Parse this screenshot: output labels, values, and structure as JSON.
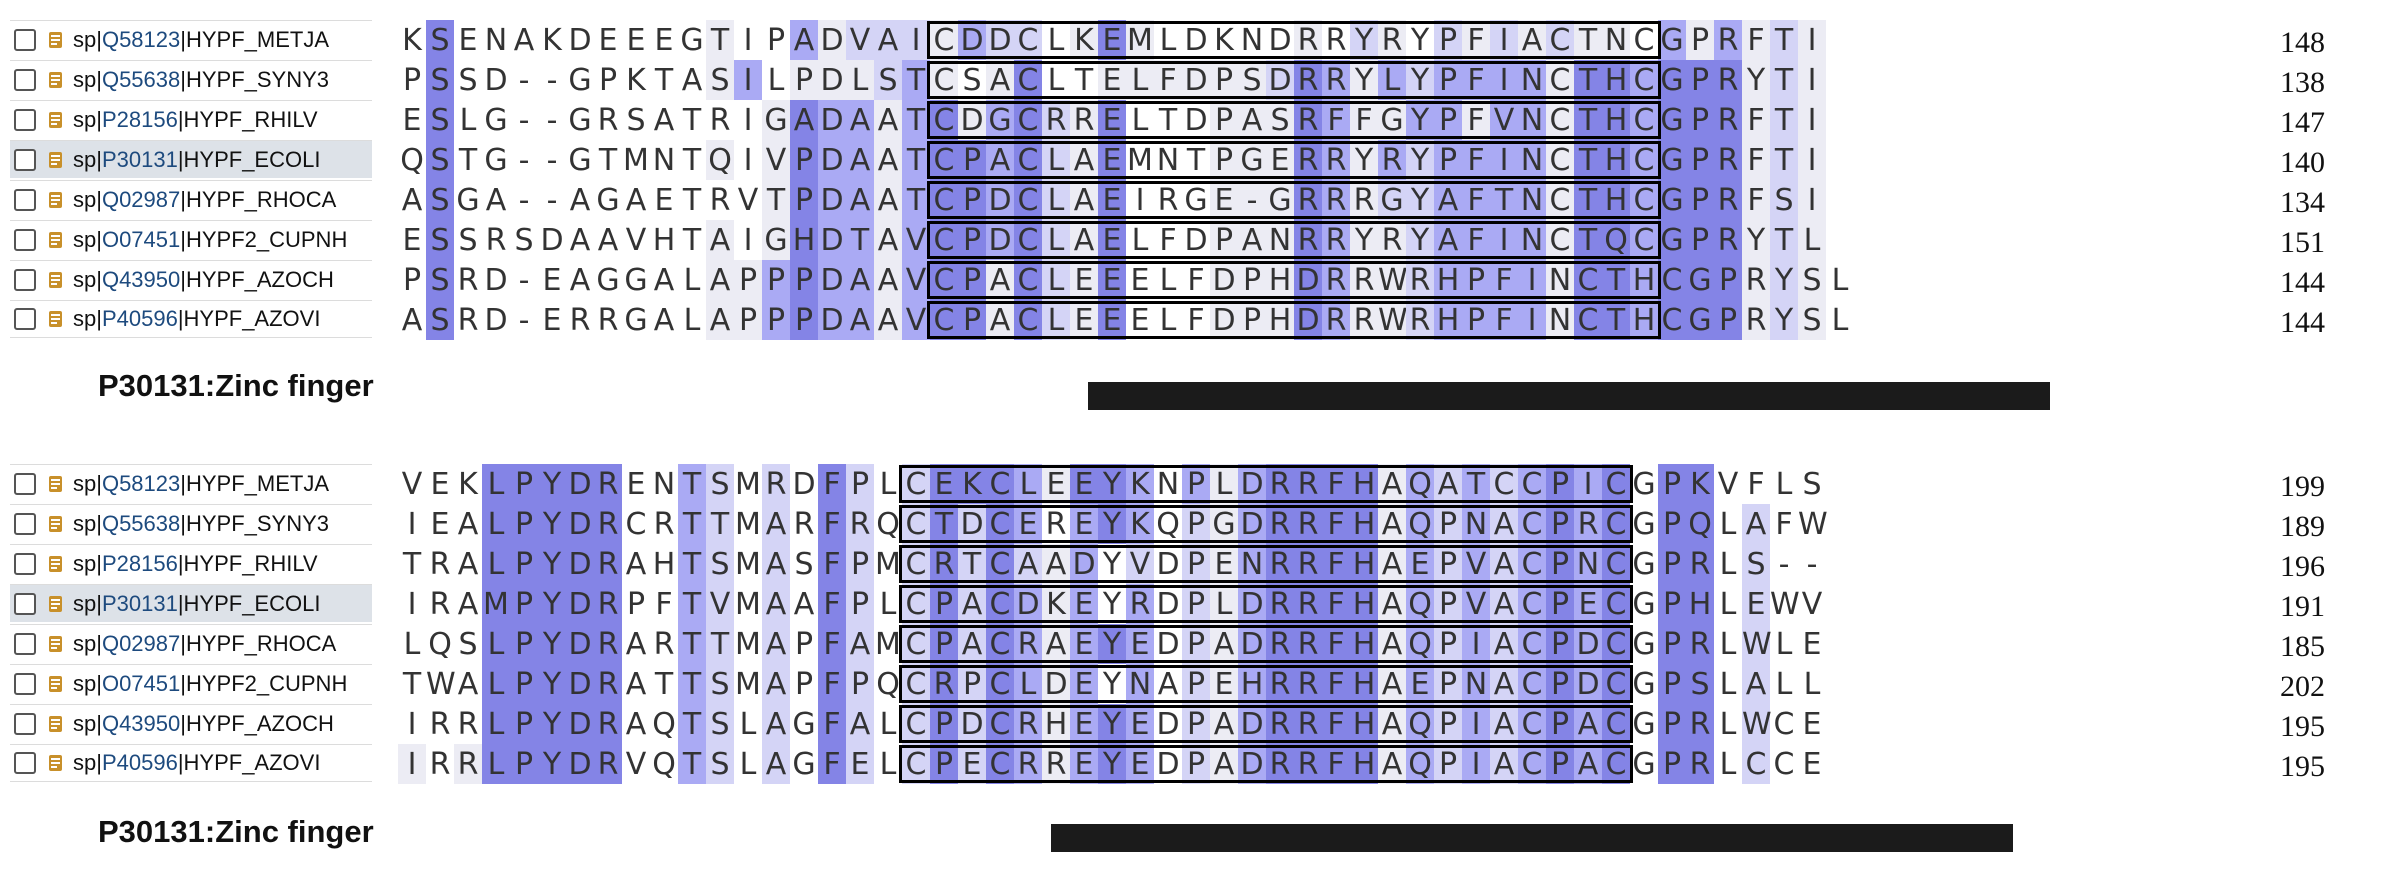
{
  "colors": {
    "accession_link": "#1d4a7e",
    "identity_levels": [
      "transparent",
      "#ececf4",
      "#d4d4f6",
      "#aaaaf4",
      "#8484e6"
    ],
    "selected_row": "#dde2e8",
    "feature_bar": "#1b1b1b",
    "db_icon": "#c8902a"
  },
  "icons": {
    "row_icon": "database-icon",
    "checkbox": "checkbox-icon"
  },
  "blocks": [
    {
      "feature_label": "P30131:Zinc finger",
      "rows": [
        {
          "db": "sp|",
          "acc": "Q58123",
          "name": "|HYPF_METJA",
          "selected": false,
          "end": "148",
          "seq": "KSENAKDEEEGTIPADVAICDDCLKEMLDKNDRRYRYPFIACTNCGPRFTI",
          "shade": "040000000001003122213220141000001021021212110313121"
        },
        {
          "db": "sp|",
          "acc": "Q55638",
          "name": "|HYPF_SYNY3",
          "selected": false,
          "end": "138",
          "seq": "PSSD--GPKTASILPDLSTCSACLTELFDPSDRRYLYPFINCTHCGPRYTI",
          "shade": "040000000001301112310140011111124313233331443444121"
        },
        {
          "db": "sp|",
          "acc": "P28156",
          "name": "|HYPF_RHILV",
          "selected": false,
          "end": "147",
          "seq": "ESLG--GRSATRIGADAATCDGCRRELTDPASRFFGYPFVNCTHCGPRFTI",
          "shade": "040000000000014331341342140001114311331331443444121"
        },
        {
          "db": "sp|",
          "acc": "P30131",
          "name": "|HYPF_ECOLI",
          "selected": true,
          "end": "140",
          "seq": "QSTG--GTMNTQIVPDAATCPACLAEMNTPGERRYRYPFINCTHCGPRFTI",
          "shade": "040000000001014331344342140001114313233331443444121"
        },
        {
          "db": "sp|",
          "acc": "Q02987",
          "name": "|HYPF_RHOCA",
          "selected": false,
          "end": "134",
          "seq": "ASGA--AGAETRVTPDAATCPDCLAEIRGE-GRRRGYAFTNCTHCGPRFSI",
          "shade": "040000000000014331344342140001114312233331443444121"
        },
        {
          "db": "sp|",
          "acc": "O07451",
          "name": "|HYPF2_CUPNH",
          "selected": false,
          "end": "151",
          "seq": "ESSRSDAAVHTAIGHDTAVCPDCLAELFDPANRRYRYAFINCTQCGPRYTL",
          "shade": "040000000001014331344342140001114311233331443444121"
        },
        {
          "db": "sp|",
          "acc": "Q43950",
          "name": "|HYPF_AZOCH",
          "selected": false,
          "end": "144",
          "seq": "PSRD-EAGGALAPPPDAAVCPACLEEELFDPHDRRWRHPFINCTHCGPRYSL",
          "shade": "0400000000011343313441421400011143112333314434441210"
        },
        {
          "db": "sp|",
          "acc": "P40596",
          "name": "|HYPF_AZOVI",
          "selected": false,
          "end": "144",
          "seq": "ASRD-ERRGALAPPPDAAVCPACLEEELFDPHDRRWRHPFINCTHCGPRYSL",
          "shade": "0400000000011343313441421400011143112333314434441210"
        }
      ]
    },
    {
      "feature_label": "P30131:Zinc finger",
      "rows": [
        {
          "db": "sp|",
          "acc": "Q58123",
          "name": "|HYPF_METJA",
          "selected": false,
          "end": "199",
          "seq": "VEKLPYDRENTSMRDFPLCEKCLEEYKNPLDRRFHAQATCCPICGPKVFLS",
          "shade": "000444440032020420244431443031344441323234340440000"
        },
        {
          "db": "sp|",
          "acc": "Q55638",
          "name": "|HYPF_SYNY3",
          "selected": false,
          "end": "189",
          "seq": "IEALPYDRCRTTMARFRQCTDCEREYKQPGDRRFHAQPNACPRCGPQLAFW",
          "shade": "000444440032020420242430343021344441323234340440200"
        },
        {
          "db": "sp|",
          "acc": "P28156",
          "name": "|HYPF_RHILV",
          "selected": false,
          "end": "196",
          "seq": "TRALPYDRAHTSMASFPMCRTCAADYVDPENRRFHAEPVACPNCGPRLS--",
          "shade": "000444440032020420242421302021344441323234340440200"
        },
        {
          "db": "sp|",
          "acc": "P30131",
          "name": "|HYPF_ECOLI",
          "selected": true,
          "end": "191",
          "seq": "IRAMPYDRPFTVMAAFPLCPACDKEYRDPLDRRFHAQPVACPECGPHLEWV",
          "shade": "000444440032020420242431303021344441323234340440200"
        },
        {
          "db": "sp|",
          "acc": "Q02987",
          "name": "|HYPF_RHOCA",
          "selected": false,
          "end": "185",
          "seq": "LQSLPYDRARTTMAPFAMCPACRAEYEDPADRRFHAQPIACPDCGPRLWLE",
          "shade": "000444440032020420242431343021344441323234340440200"
        },
        {
          "db": "sp|",
          "acc": "O07451",
          "name": "|HYPF2_CUPNH",
          "selected": false,
          "end": "202",
          "seq": "TWALPYDRATTSMAPFPQCRPCLDEYNAPEHRRFHAEPNACPDCGPSLALL",
          "shade": "000444440032020420242431303021344441323234340440200"
        },
        {
          "db": "sp|",
          "acc": "Q43950",
          "name": "|HYPF_AZOCH",
          "selected": false,
          "end": "195",
          "seq": "IRRLPYDRAQTSLAGFALCPDCRHEYEDPADRRFHAQPIACPACGPRLWCE",
          "shade": "000444440032020420242431343021344441323234340440200"
        },
        {
          "db": "sp|",
          "acc": "P40596",
          "name": "|HYPF_AZOVI",
          "selected": false,
          "end": "195",
          "seq": "IRRLPYDRVQTSLAGFELCPECRREYEDPADRRFHAQPIACPACGPRLCCE",
          "shade": "101444440032020420242431343021344441323234340440200"
        }
      ]
    }
  ]
}
